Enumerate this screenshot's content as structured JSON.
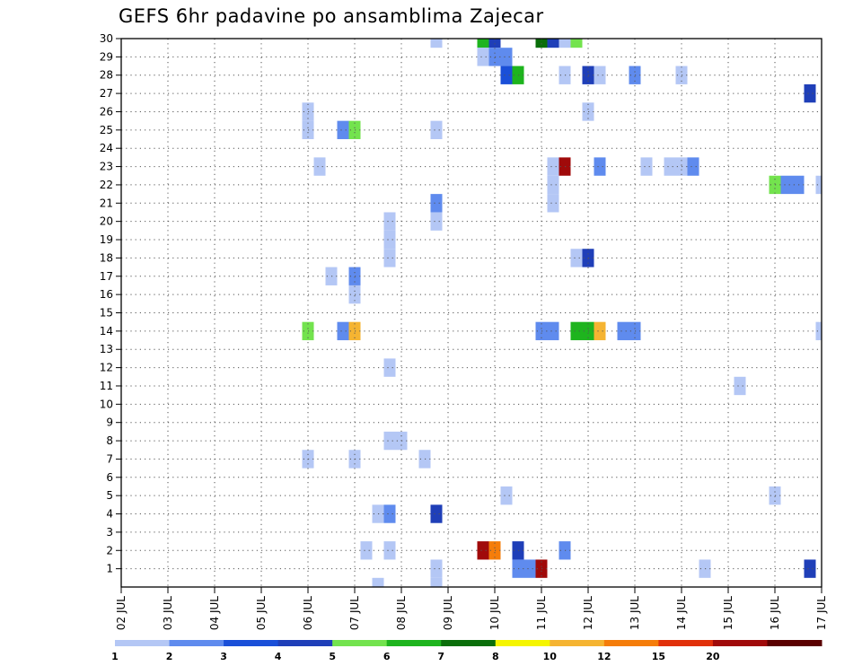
{
  "chart_data": {
    "type": "heatmap",
    "title": "GEFS 6hr padavine po ansamblima Zajecar",
    "x_tick_labels": [
      "02 JUL",
      "03 JUL",
      "04 JUL",
      "05 JUL",
      "06 JUL",
      "07 JUL",
      "08 JUL",
      "09 JUL",
      "10 JUL",
      "11 JUL",
      "12 JUL",
      "13 JUL",
      "14 JUL",
      "15 JUL",
      "16 JUL",
      "17 JUL"
    ],
    "y_tick_labels": [
      "1",
      "2",
      "3",
      "4",
      "5",
      "6",
      "7",
      "8",
      "9",
      "10",
      "11",
      "12",
      "13",
      "14",
      "15",
      "16",
      "17",
      "18",
      "19",
      "20",
      "21",
      "22",
      "23",
      "24",
      "25",
      "26",
      "27",
      "28",
      "29",
      "30"
    ],
    "x_range_days": [
      0,
      15
    ],
    "y_range": [
      0,
      30
    ],
    "grid": true,
    "legend_position": "bottom",
    "legend": {
      "levels": [
        "1",
        "2",
        "3",
        "4",
        "5",
        "6",
        "7",
        "8",
        "10",
        "12",
        "15",
        "20"
      ],
      "colors": [
        "#b4c7f5",
        "#5f8bee",
        "#1a4fd8",
        "#1f3fb8",
        "#73e34e",
        "#1eb41e",
        "#0a6e0a",
        "#f5f500",
        "#f5b432",
        "#f57d0a",
        "#e1300a",
        "#a00a0a",
        "#5a0000"
      ]
    },
    "cells": [
      {
        "x": 6.75,
        "y": 30,
        "c": 0
      },
      {
        "x": 7.75,
        "y": 30,
        "c": 5
      },
      {
        "x": 8.0,
        "y": 30,
        "c": 3
      },
      {
        "x": 9.0,
        "y": 30,
        "c": 6
      },
      {
        "x": 9.25,
        "y": 30,
        "c": 3
      },
      {
        "x": 9.5,
        "y": 30,
        "c": 0
      },
      {
        "x": 9.75,
        "y": 30,
        "c": 4
      },
      {
        "x": 7.75,
        "y": 29,
        "c": 0
      },
      {
        "x": 8.0,
        "y": 29,
        "c": 1
      },
      {
        "x": 8.25,
        "y": 29,
        "c": 1
      },
      {
        "x": 8.25,
        "y": 28,
        "c": 2
      },
      {
        "x": 8.5,
        "y": 28,
        "c": 5
      },
      {
        "x": 9.5,
        "y": 28,
        "c": 0
      },
      {
        "x": 10.0,
        "y": 28,
        "c": 3
      },
      {
        "x": 10.25,
        "y": 28,
        "c": 0
      },
      {
        "x": 11.0,
        "y": 28,
        "c": 1
      },
      {
        "x": 12.0,
        "y": 28,
        "c": 0
      },
      {
        "x": 14.75,
        "y": 27,
        "c": 3
      },
      {
        "x": 4.0,
        "y": 26,
        "c": 0
      },
      {
        "x": 10.0,
        "y": 26,
        "c": 0
      },
      {
        "x": 4.0,
        "y": 25,
        "c": 0
      },
      {
        "x": 4.75,
        "y": 25,
        "c": 1
      },
      {
        "x": 5.0,
        "y": 25,
        "c": 4
      },
      {
        "x": 6.75,
        "y": 25,
        "c": 0
      },
      {
        "x": 4.25,
        "y": 23,
        "c": 0
      },
      {
        "x": 9.25,
        "y": 23,
        "c": 0
      },
      {
        "x": 9.5,
        "y": 23,
        "c": 11
      },
      {
        "x": 10.25,
        "y": 23,
        "c": 1
      },
      {
        "x": 11.25,
        "y": 23,
        "c": 0
      },
      {
        "x": 11.75,
        "y": 23,
        "c": 0
      },
      {
        "x": 12.0,
        "y": 23,
        "c": 0
      },
      {
        "x": 12.25,
        "y": 23,
        "c": 1
      },
      {
        "x": 9.25,
        "y": 22,
        "c": 0
      },
      {
        "x": 14.0,
        "y": 22,
        "c": 4
      },
      {
        "x": 14.25,
        "y": 22,
        "c": 1
      },
      {
        "x": 14.5,
        "y": 22,
        "c": 1
      },
      {
        "x": 15.0,
        "y": 22,
        "c": 0
      },
      {
        "x": 9.25,
        "y": 21,
        "c": 0
      },
      {
        "x": 6.75,
        "y": 21,
        "c": 1
      },
      {
        "x": 5.75,
        "y": 20,
        "c": 0
      },
      {
        "x": 6.75,
        "y": 20,
        "c": 0
      },
      {
        "x": 5.75,
        "y": 19,
        "c": 0
      },
      {
        "x": 5.75,
        "y": 18,
        "c": 0
      },
      {
        "x": 9.75,
        "y": 18,
        "c": 0
      },
      {
        "x": 10.0,
        "y": 18,
        "c": 3
      },
      {
        "x": 4.5,
        "y": 17,
        "c": 0
      },
      {
        "x": 5.0,
        "y": 17,
        "c": 1
      },
      {
        "x": 5.0,
        "y": 16,
        "c": 0
      },
      {
        "x": 4.0,
        "y": 14,
        "c": 4
      },
      {
        "x": 4.75,
        "y": 14,
        "c": 1
      },
      {
        "x": 5.0,
        "y": 14,
        "c": 8
      },
      {
        "x": 9.0,
        "y": 14,
        "c": 1
      },
      {
        "x": 9.25,
        "y": 14,
        "c": 1
      },
      {
        "x": 9.75,
        "y": 14,
        "c": 5
      },
      {
        "x": 10.0,
        "y": 14,
        "c": 5
      },
      {
        "x": 10.25,
        "y": 14,
        "c": 8
      },
      {
        "x": 10.75,
        "y": 14,
        "c": 1
      },
      {
        "x": 11.0,
        "y": 14,
        "c": 1
      },
      {
        "x": 15.0,
        "y": 14,
        "c": 0
      },
      {
        "x": 5.75,
        "y": 12,
        "c": 0
      },
      {
        "x": 13.25,
        "y": 11,
        "c": 0
      },
      {
        "x": 5.75,
        "y": 8,
        "c": 0
      },
      {
        "x": 6.0,
        "y": 8,
        "c": 0
      },
      {
        "x": 4.0,
        "y": 7,
        "c": 0
      },
      {
        "x": 5.0,
        "y": 7,
        "c": 0
      },
      {
        "x": 6.5,
        "y": 7,
        "c": 0
      },
      {
        "x": 8.25,
        "y": 5,
        "c": 0
      },
      {
        "x": 14.0,
        "y": 5,
        "c": 0
      },
      {
        "x": 5.5,
        "y": 4,
        "c": 0
      },
      {
        "x": 5.75,
        "y": 4,
        "c": 1
      },
      {
        "x": 6.75,
        "y": 4,
        "c": 3
      },
      {
        "x": 5.25,
        "y": 2,
        "c": 0
      },
      {
        "x": 5.75,
        "y": 2,
        "c": 0
      },
      {
        "x": 7.75,
        "y": 2,
        "c": 11
      },
      {
        "x": 8.0,
        "y": 2,
        "c": 9
      },
      {
        "x": 8.5,
        "y": 2,
        "c": 3
      },
      {
        "x": 9.5,
        "y": 2,
        "c": 1
      },
      {
        "x": 6.75,
        "y": 1,
        "c": 0
      },
      {
        "x": 8.5,
        "y": 1,
        "c": 1
      },
      {
        "x": 8.75,
        "y": 1,
        "c": 1
      },
      {
        "x": 9.0,
        "y": 1,
        "c": 11
      },
      {
        "x": 12.5,
        "y": 1,
        "c": 0
      },
      {
        "x": 14.75,
        "y": 1,
        "c": 3
      },
      {
        "x": 5.5,
        "y": 0,
        "c": 0
      },
      {
        "x": 6.75,
        "y": 0,
        "c": 0
      }
    ]
  }
}
